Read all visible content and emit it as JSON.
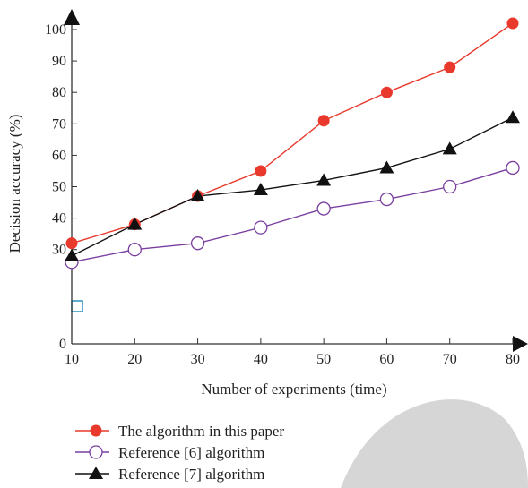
{
  "chart_data": {
    "type": "line",
    "xlabel": "Number of experiments (time)",
    "ylabel": "Decision accuracy (%)",
    "x": [
      10,
      20,
      30,
      40,
      50,
      60,
      70,
      80
    ],
    "xlim": [
      10,
      80
    ],
    "ylim": [
      0,
      100
    ],
    "x_ticks": [
      "10",
      "20",
      "30",
      "40",
      "50",
      "60",
      "70",
      "80"
    ],
    "y_ticks": [
      "0",
      "30",
      "40",
      "50",
      "60",
      "70",
      "80",
      "90",
      "100"
    ],
    "grid": false,
    "legend_position": "bottom-left",
    "series": [
      {
        "name": "The algorithm in this paper",
        "values": [
          32,
          38,
          47,
          55,
          71,
          80,
          88,
          102
        ],
        "color": "#e8392c",
        "marker": "filled-circle"
      },
      {
        "name": "Reference [6] algorithm",
        "values": [
          26,
          30,
          32,
          37,
          43,
          46,
          50,
          56
        ],
        "color": "#7a3fa0",
        "marker": "hollow-circle"
      },
      {
        "name": "Reference [7] algorithm",
        "values": [
          28,
          38,
          47,
          49,
          52,
          56,
          62,
          72
        ],
        "color": "#111111",
        "marker": "filled-triangle"
      }
    ]
  }
}
